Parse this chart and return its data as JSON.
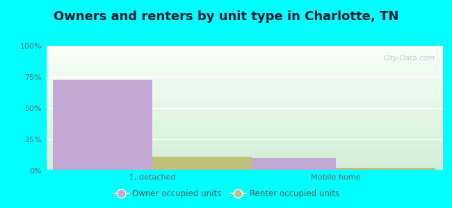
{
  "title": "Owners and renters by unit type in Charlotte, TN",
  "categories": [
    "1, detached",
    "Mobile home"
  ],
  "owner_values": [
    73,
    10
  ],
  "renter_values": [
    11,
    2
  ],
  "owner_color": "#c4a8d4",
  "renter_color": "#bfc07a",
  "bar_width": 0.25,
  "ylim": [
    0,
    100
  ],
  "yticks": [
    0,
    25,
    50,
    75,
    100
  ],
  "ytick_labels": [
    "0%",
    "25%",
    "50%",
    "75%",
    "100%"
  ],
  "legend_owner": "Owner occupied units",
  "legend_renter": "Renter occupied units",
  "bg_color": "#00ffff",
  "title_fontsize": 13,
  "axis_fontsize": 8,
  "legend_fontsize": 8.5,
  "watermark": "City-Data.com"
}
